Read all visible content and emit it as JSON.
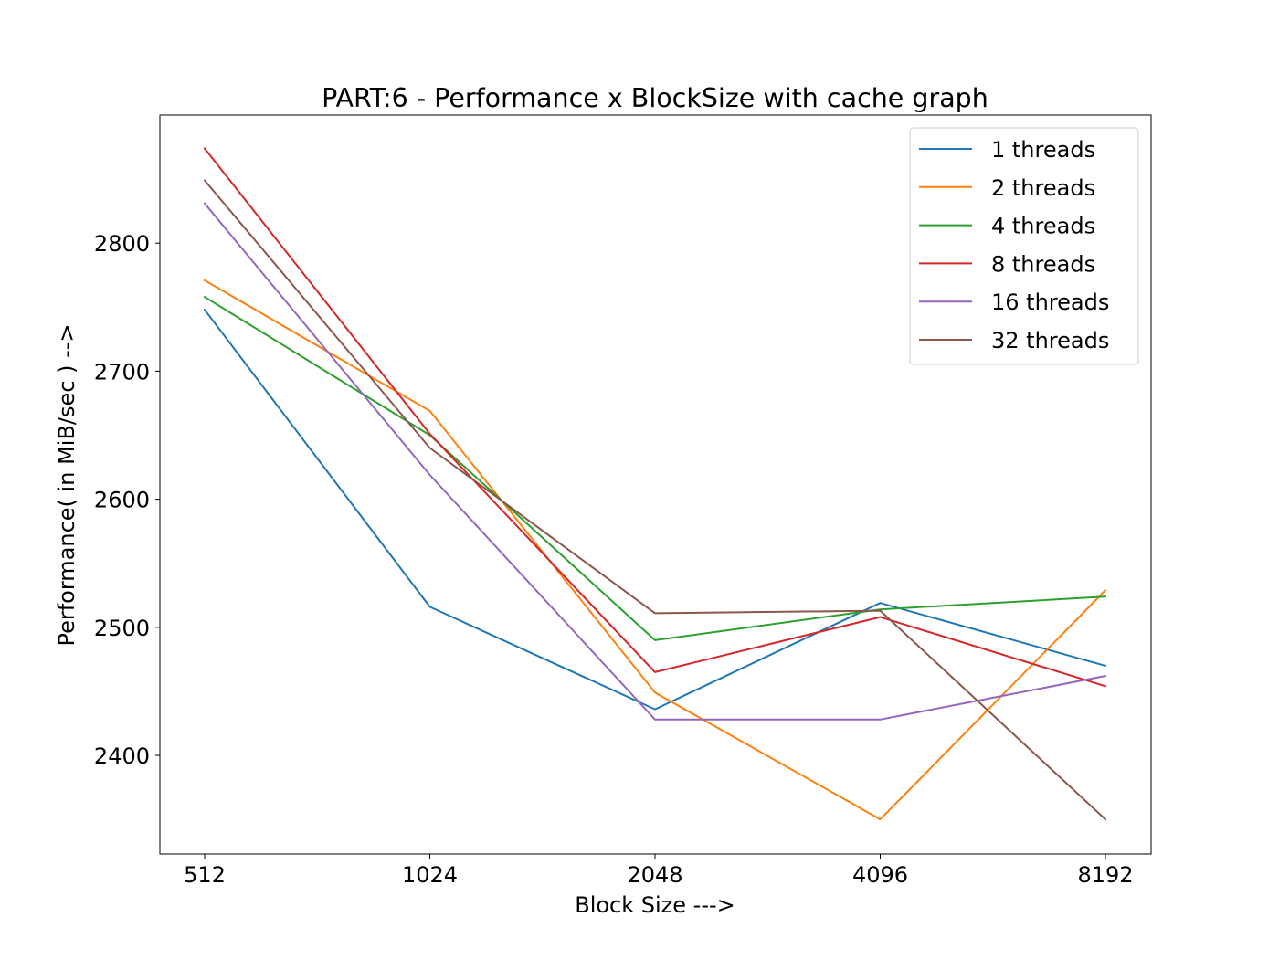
{
  "chart_data": {
    "type": "line",
    "title": "PART:6 - Performance x BlockSize with cache graph",
    "xlabel": "Block Size --->",
    "ylabel": "Performance( in MiB/sec ) -->",
    "categories": [
      "512",
      "1024",
      "2048",
      "4096",
      "8192"
    ],
    "yticks": [
      2400,
      2500,
      2600,
      2700,
      2800
    ],
    "ylim": [
      2323,
      2900
    ],
    "grid": false,
    "legend_position": "top-right",
    "series": [
      {
        "name": "1 threads",
        "color": "#1f77b4",
        "values": [
          2748,
          2516,
          2436,
          2519,
          2470
        ]
      },
      {
        "name": "2 threads",
        "color": "#ff7f0e",
        "values": [
          2771,
          2669,
          2449,
          2350,
          2529
        ]
      },
      {
        "name": "4 threads",
        "color": "#2ca02c",
        "values": [
          2758,
          2650,
          2490,
          2514,
          2524
        ]
      },
      {
        "name": "8 threads",
        "color": "#d62728",
        "values": [
          2874,
          2651,
          2465,
          2508,
          2454
        ]
      },
      {
        "name": "16 threads",
        "color": "#9467bd",
        "values": [
          2831,
          2619,
          2428,
          2428,
          2462
        ]
      },
      {
        "name": "32 threads",
        "color": "#8c564b",
        "values": [
          2849,
          2640,
          2511,
          2513,
          2350
        ]
      }
    ]
  }
}
